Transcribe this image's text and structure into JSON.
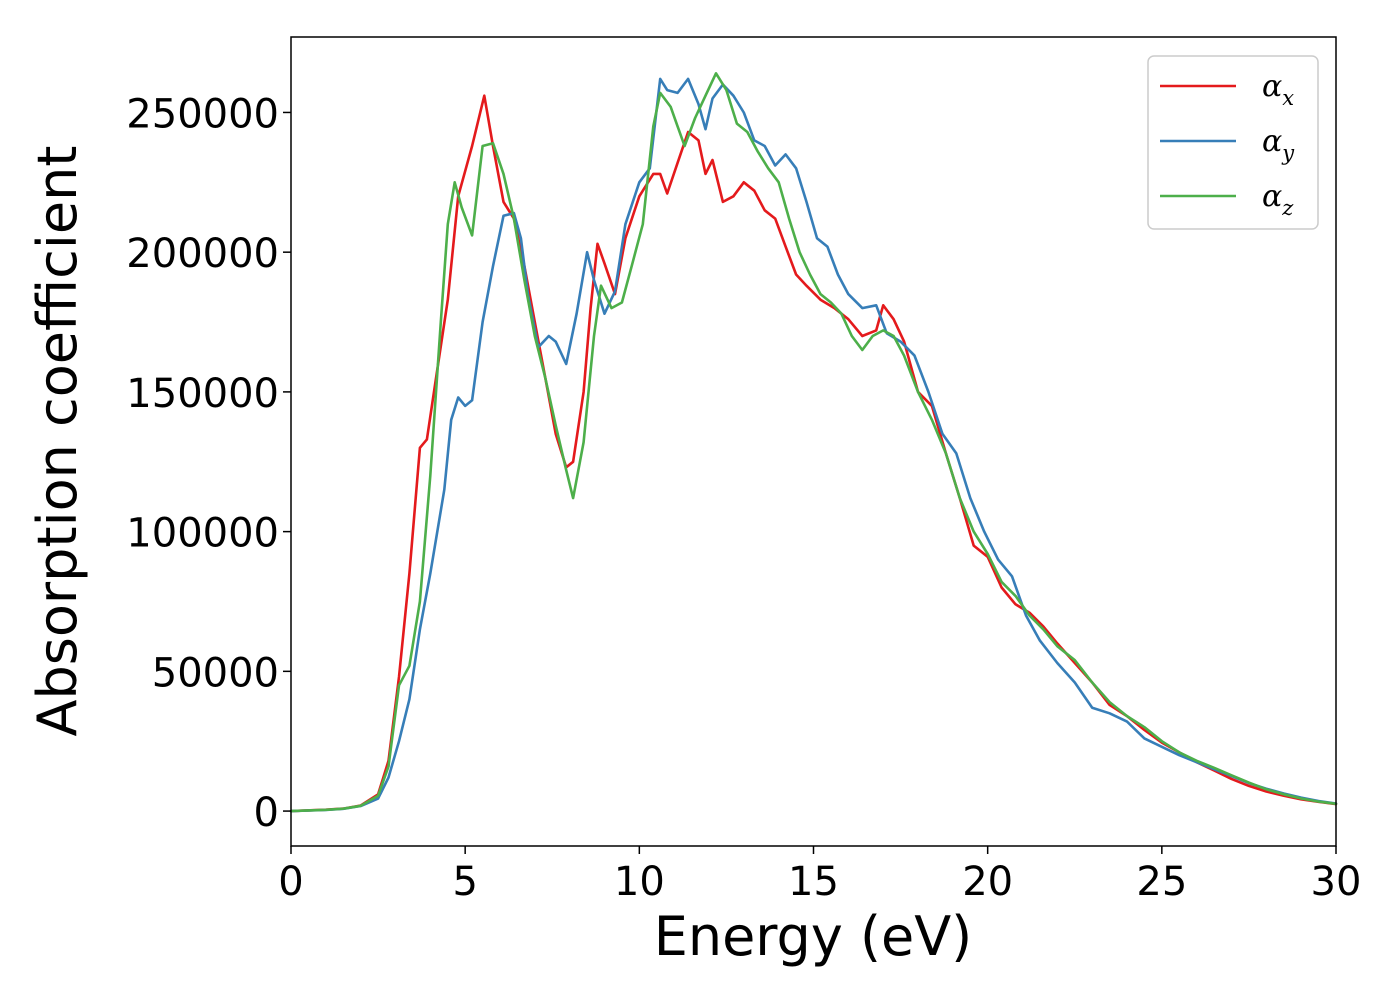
{
  "chart_data": {
    "type": "line",
    "xlabel": "Energy (eV)",
    "ylabel": "Absorption coefficient",
    "xlim": [
      0,
      30
    ],
    "ylim": [
      -12500,
      277000
    ],
    "x_ticks": [
      0,
      5,
      10,
      15,
      20,
      25,
      30
    ],
    "x_tick_labels": [
      "0",
      "5",
      "10",
      "15",
      "20",
      "25",
      "30"
    ],
    "y_ticks": [
      0,
      50000,
      100000,
      150000,
      200000,
      250000
    ],
    "y_tick_labels": [
      "0",
      "50000",
      "100000",
      "150000",
      "200000",
      "250000"
    ],
    "grid": false,
    "legend_position": "top-right",
    "series": [
      {
        "name": "α",
        "subscript": "x",
        "color": "#e41a1c",
        "points": [
          [
            0,
            0
          ],
          [
            1,
            500
          ],
          [
            1.5,
            900
          ],
          [
            2,
            2000
          ],
          [
            2.5,
            6000
          ],
          [
            2.8,
            18000
          ],
          [
            3.1,
            48000
          ],
          [
            3.4,
            85000
          ],
          [
            3.7,
            130000
          ],
          [
            3.9,
            133000
          ],
          [
            4.2,
            158000
          ],
          [
            4.5,
            183000
          ],
          [
            4.8,
            220000
          ],
          [
            5.2,
            238000
          ],
          [
            5.55,
            256000
          ],
          [
            5.8,
            238000
          ],
          [
            6.1,
            218000
          ],
          [
            6.4,
            212000
          ],
          [
            6.7,
            195000
          ],
          [
            7.0,
            175000
          ],
          [
            7.3,
            155000
          ],
          [
            7.6,
            135000
          ],
          [
            7.9,
            123000
          ],
          [
            8.1,
            125000
          ],
          [
            8.4,
            150000
          ],
          [
            8.6,
            180000
          ],
          [
            8.8,
            203000
          ],
          [
            9.0,
            196000
          ],
          [
            9.3,
            185000
          ],
          [
            9.6,
            205000
          ],
          [
            10.0,
            220000
          ],
          [
            10.4,
            228000
          ],
          [
            10.6,
            228000
          ],
          [
            10.8,
            221000
          ],
          [
            11.1,
            232000
          ],
          [
            11.4,
            243000
          ],
          [
            11.7,
            240000
          ],
          [
            11.9,
            228000
          ],
          [
            12.1,
            233000
          ],
          [
            12.4,
            218000
          ],
          [
            12.7,
            220000
          ],
          [
            13.0,
            225000
          ],
          [
            13.3,
            222000
          ],
          [
            13.6,
            215000
          ],
          [
            13.9,
            212000
          ],
          [
            14.2,
            202000
          ],
          [
            14.5,
            192000
          ],
          [
            14.8,
            188000
          ],
          [
            15.2,
            183000
          ],
          [
            15.6,
            180000
          ],
          [
            16.0,
            176000
          ],
          [
            16.4,
            170000
          ],
          [
            16.8,
            172000
          ],
          [
            17.0,
            181000
          ],
          [
            17.3,
            176000
          ],
          [
            17.6,
            168000
          ],
          [
            18.0,
            150000
          ],
          [
            18.4,
            145000
          ],
          [
            18.8,
            128000
          ],
          [
            19.2,
            112000
          ],
          [
            19.6,
            95000
          ],
          [
            20.0,
            91000
          ],
          [
            20.4,
            80000
          ],
          [
            20.8,
            74000
          ],
          [
            21.2,
            71000
          ],
          [
            21.6,
            66000
          ],
          [
            22.0,
            60000
          ],
          [
            22.5,
            53000
          ],
          [
            23.0,
            46000
          ],
          [
            23.5,
            38000
          ],
          [
            24.0,
            34000
          ],
          [
            24.5,
            29000
          ],
          [
            25.0,
            24500
          ],
          [
            25.5,
            21000
          ],
          [
            26.0,
            17500
          ],
          [
            26.5,
            14500
          ],
          [
            27.0,
            11500
          ],
          [
            27.5,
            9000
          ],
          [
            28.0,
            7000
          ],
          [
            28.5,
            5500
          ],
          [
            29.0,
            4200
          ],
          [
            29.5,
            3300
          ],
          [
            30.0,
            2500
          ]
        ]
      },
      {
        "name": "α",
        "subscript": "y",
        "color": "#377eb8",
        "points": [
          [
            0,
            0
          ],
          [
            1,
            400
          ],
          [
            1.5,
            800
          ],
          [
            2,
            1800
          ],
          [
            2.5,
            4500
          ],
          [
            2.8,
            12000
          ],
          [
            3.1,
            25000
          ],
          [
            3.4,
            40000
          ],
          [
            3.7,
            65000
          ],
          [
            4.0,
            85000
          ],
          [
            4.2,
            100000
          ],
          [
            4.4,
            115000
          ],
          [
            4.6,
            140000
          ],
          [
            4.8,
            148000
          ],
          [
            5.0,
            145000
          ],
          [
            5.2,
            147000
          ],
          [
            5.5,
            175000
          ],
          [
            5.8,
            195000
          ],
          [
            6.1,
            213000
          ],
          [
            6.4,
            214000
          ],
          [
            6.6,
            205000
          ],
          [
            6.8,
            185000
          ],
          [
            7.1,
            166000
          ],
          [
            7.4,
            170000
          ],
          [
            7.6,
            168000
          ],
          [
            7.9,
            160000
          ],
          [
            8.2,
            178000
          ],
          [
            8.5,
            200000
          ],
          [
            8.7,
            190000
          ],
          [
            9.0,
            178000
          ],
          [
            9.3,
            186000
          ],
          [
            9.6,
            210000
          ],
          [
            10.0,
            225000
          ],
          [
            10.3,
            230000
          ],
          [
            10.6,
            262000
          ],
          [
            10.8,
            258000
          ],
          [
            11.1,
            257000
          ],
          [
            11.4,
            262000
          ],
          [
            11.7,
            253000
          ],
          [
            11.9,
            244000
          ],
          [
            12.1,
            255000
          ],
          [
            12.4,
            260000
          ],
          [
            12.7,
            256000
          ],
          [
            13.0,
            250000
          ],
          [
            13.3,
            240000
          ],
          [
            13.6,
            238000
          ],
          [
            13.9,
            231000
          ],
          [
            14.2,
            235000
          ],
          [
            14.5,
            230000
          ],
          [
            14.8,
            218000
          ],
          [
            15.1,
            205000
          ],
          [
            15.4,
            202000
          ],
          [
            15.7,
            192000
          ],
          [
            16.0,
            185000
          ],
          [
            16.4,
            180000
          ],
          [
            16.8,
            181000
          ],
          [
            17.1,
            171000
          ],
          [
            17.5,
            168000
          ],
          [
            17.9,
            163000
          ],
          [
            18.3,
            150000
          ],
          [
            18.7,
            135000
          ],
          [
            19.1,
            128000
          ],
          [
            19.5,
            112000
          ],
          [
            19.9,
            100000
          ],
          [
            20.3,
            90000
          ],
          [
            20.7,
            84000
          ],
          [
            21.1,
            70000
          ],
          [
            21.5,
            61000
          ],
          [
            22.0,
            53000
          ],
          [
            22.5,
            46000
          ],
          [
            23.0,
            37000
          ],
          [
            23.5,
            35000
          ],
          [
            24.0,
            32000
          ],
          [
            24.5,
            26000
          ],
          [
            25.0,
            23000
          ],
          [
            25.5,
            20000
          ],
          [
            26.0,
            17500
          ],
          [
            26.5,
            15000
          ],
          [
            27.0,
            12500
          ],
          [
            27.5,
            10000
          ],
          [
            28.0,
            8000
          ],
          [
            28.5,
            6300
          ],
          [
            29.0,
            4800
          ],
          [
            29.5,
            3600
          ],
          [
            30.0,
            2700
          ]
        ]
      },
      {
        "name": "α",
        "subscript": "z",
        "color": "#4daf4a",
        "points": [
          [
            0,
            0
          ],
          [
            1,
            450
          ],
          [
            1.5,
            850
          ],
          [
            2,
            1900
          ],
          [
            2.5,
            5500
          ],
          [
            2.8,
            16000
          ],
          [
            3.1,
            45000
          ],
          [
            3.4,
            52000
          ],
          [
            3.7,
            75000
          ],
          [
            4.0,
            120000
          ],
          [
            4.3,
            175000
          ],
          [
            4.5,
            210000
          ],
          [
            4.7,
            225000
          ],
          [
            4.9,
            216000
          ],
          [
            5.2,
            206000
          ],
          [
            5.5,
            238000
          ],
          [
            5.8,
            239000
          ],
          [
            6.1,
            228000
          ],
          [
            6.4,
            212000
          ],
          [
            6.7,
            190000
          ],
          [
            7.0,
            170000
          ],
          [
            7.3,
            155000
          ],
          [
            7.6,
            138000
          ],
          [
            7.9,
            122000
          ],
          [
            8.1,
            112000
          ],
          [
            8.4,
            132000
          ],
          [
            8.7,
            170000
          ],
          [
            8.9,
            188000
          ],
          [
            9.2,
            180000
          ],
          [
            9.5,
            182000
          ],
          [
            9.8,
            196000
          ],
          [
            10.1,
            210000
          ],
          [
            10.4,
            245000
          ],
          [
            10.6,
            257000
          ],
          [
            10.9,
            252000
          ],
          [
            11.1,
            245000
          ],
          [
            11.3,
            238000
          ],
          [
            11.6,
            248000
          ],
          [
            11.9,
            256000
          ],
          [
            12.2,
            264000
          ],
          [
            12.5,
            258000
          ],
          [
            12.8,
            246000
          ],
          [
            13.1,
            243000
          ],
          [
            13.4,
            236000
          ],
          [
            13.7,
            230000
          ],
          [
            14.0,
            225000
          ],
          [
            14.3,
            212000
          ],
          [
            14.6,
            200000
          ],
          [
            14.9,
            192000
          ],
          [
            15.2,
            185000
          ],
          [
            15.5,
            182000
          ],
          [
            15.8,
            178000
          ],
          [
            16.1,
            170000
          ],
          [
            16.4,
            165000
          ],
          [
            16.7,
            170000
          ],
          [
            17.0,
            172000
          ],
          [
            17.3,
            170000
          ],
          [
            17.6,
            163000
          ],
          [
            18.0,
            150000
          ],
          [
            18.4,
            140000
          ],
          [
            18.8,
            128000
          ],
          [
            19.2,
            112000
          ],
          [
            19.6,
            100000
          ],
          [
            20.0,
            92000
          ],
          [
            20.4,
            82000
          ],
          [
            20.8,
            77000
          ],
          [
            21.2,
            70000
          ],
          [
            21.6,
            65000
          ],
          [
            22.0,
            59000
          ],
          [
            22.5,
            54000
          ],
          [
            23.0,
            46000
          ],
          [
            23.5,
            39000
          ],
          [
            24.0,
            34000
          ],
          [
            24.5,
            30000
          ],
          [
            25.0,
            25000
          ],
          [
            25.5,
            21000
          ],
          [
            26.0,
            18000
          ],
          [
            26.5,
            15500
          ],
          [
            27.0,
            12800
          ],
          [
            27.5,
            10200
          ],
          [
            28.0,
            7800
          ],
          [
            28.5,
            6000
          ],
          [
            29.0,
            4500
          ],
          [
            29.5,
            3400
          ],
          [
            30.0,
            2600
          ]
        ]
      }
    ]
  }
}
